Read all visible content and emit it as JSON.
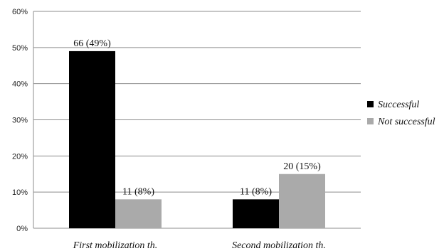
{
  "chart_data": {
    "type": "bar",
    "categories": [
      "First mobilization th.",
      "Second mobilization th."
    ],
    "series": [
      {
        "name": "Successful",
        "values": [
          49,
          8
        ],
        "labels": [
          "66 (49%)",
          "11 (8%)"
        ],
        "color": "#000000"
      },
      {
        "name": "Not successful",
        "values": [
          8,
          15
        ],
        "labels": [
          "11 (8%)",
          "20 (15%)"
        ],
        "color": "#aaaaaa"
      }
    ],
    "yticks": [
      "0%",
      "10%",
      "20%",
      "30%",
      "40%",
      "50%",
      "60%"
    ],
    "ylim": [
      0,
      60
    ],
    "grid": true,
    "legend": "right"
  }
}
